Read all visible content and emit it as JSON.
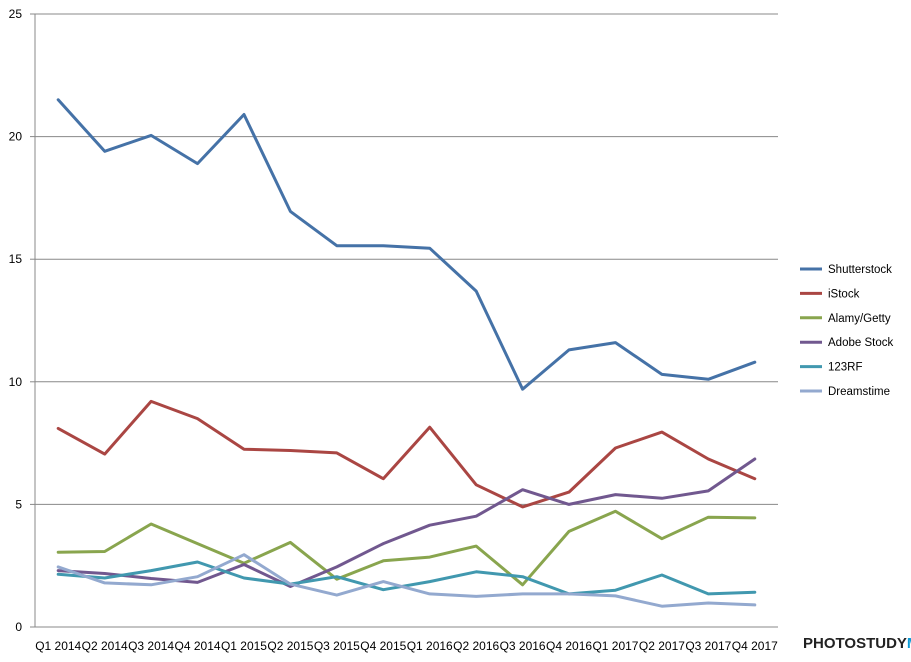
{
  "chart_data": {
    "type": "line",
    "categories": [
      "Q1 2014",
      "Q2 2014",
      "Q3 2014",
      "Q4 2014",
      "Q1 2015",
      "Q2 2015",
      "Q3 2015",
      "Q4 2015",
      "Q1 2016",
      "Q2 2016",
      "Q3 2016",
      "Q4 2016",
      "Q1 2017",
      "Q2 2017",
      "Q3 2017",
      "Q4 2017"
    ],
    "ylim": [
      0,
      25
    ],
    "yticks": [
      0,
      5,
      10,
      15,
      20,
      25
    ],
    "grid": true,
    "legend_position": "right",
    "series": [
      {
        "name": "Shutterstock",
        "color": "#4572a7",
        "values": [
          21.5,
          19.4,
          20.05,
          18.9,
          20.9,
          16.95,
          15.55,
          15.55,
          15.45,
          13.7,
          9.7,
          11.3,
          11.6,
          10.3,
          10.1,
          10.8
        ]
      },
      {
        "name": "iStock",
        "color": "#aa4643",
        "values": [
          8.1,
          7.05,
          9.2,
          8.5,
          7.25,
          7.2,
          7.1,
          6.05,
          8.15,
          5.8,
          4.9,
          5.5,
          7.3,
          7.95,
          6.85,
          6.05
        ]
      },
      {
        "name": "Alamy/Getty",
        "color": "#89a54e",
        "values": [
          3.05,
          3.08,
          4.2,
          3.4,
          2.6,
          3.45,
          1.95,
          2.7,
          2.85,
          3.3,
          1.72,
          3.9,
          4.72,
          3.6,
          4.48,
          4.45
        ]
      },
      {
        "name": "Adobe Stock",
        "color": "#71588f",
        "values": [
          2.3,
          2.18,
          1.98,
          1.82,
          2.55,
          1.65,
          2.45,
          3.4,
          4.15,
          4.52,
          5.6,
          5.0,
          5.4,
          5.25,
          5.55,
          6.85
        ]
      },
      {
        "name": "123RF",
        "color": "#4198af",
        "values": [
          2.15,
          2.0,
          2.3,
          2.65,
          2.0,
          1.75,
          2.05,
          1.52,
          1.85,
          2.25,
          2.05,
          1.35,
          1.5,
          2.12,
          1.35,
          1.42
        ]
      },
      {
        "name": "Dreamstime",
        "color": "#93a9cf",
        "values": [
          2.45,
          1.8,
          1.72,
          2.05,
          2.95,
          1.75,
          1.3,
          1.85,
          1.35,
          1.25,
          1.35,
          1.35,
          1.27,
          0.85,
          0.98,
          0.9
        ]
      }
    ]
  },
  "watermark": {
    "part1": "PHOTOSTUDY",
    "part2": "ME"
  }
}
